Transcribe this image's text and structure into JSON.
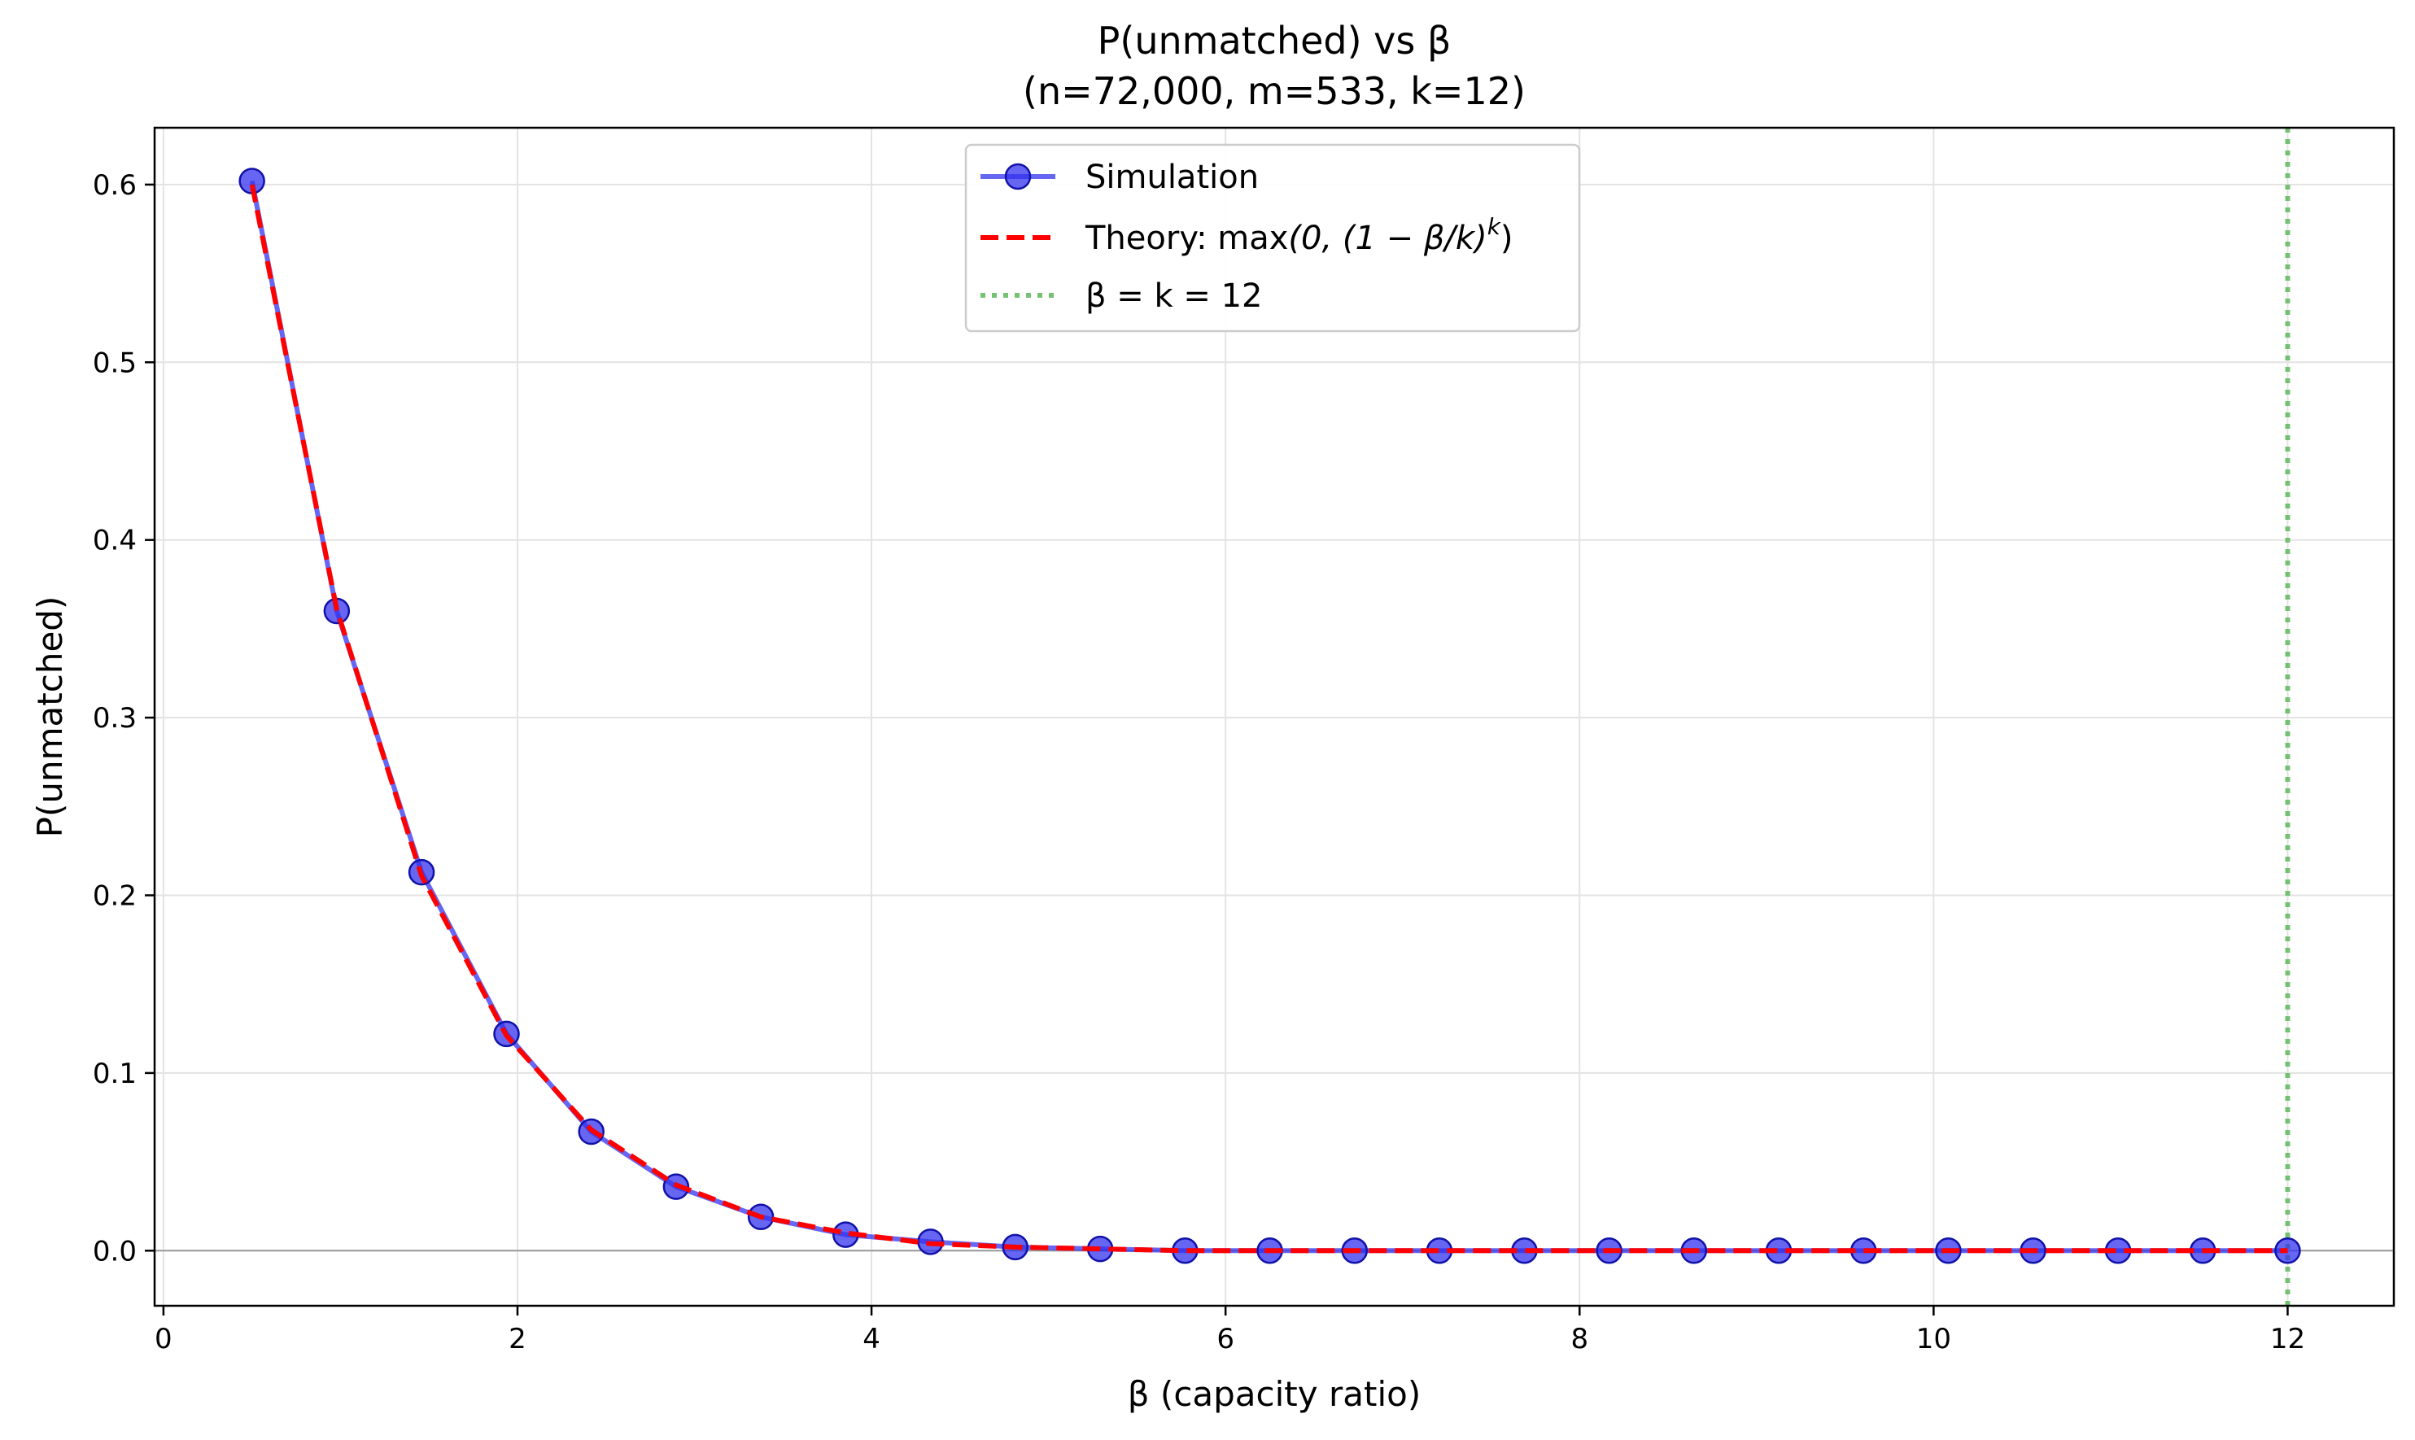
{
  "chart_data": {
    "type": "line",
    "title": "P(unmatched) vs β",
    "subtitle": "(n=72,000, m=533, k=12)",
    "xlabel": "β (capacity ratio)",
    "ylabel": "P(unmatched)",
    "xlim": [
      -0.05,
      12.6
    ],
    "ylim": [
      -0.031,
      0.632
    ],
    "xticks": [
      0,
      2,
      4,
      6,
      8,
      10,
      12
    ],
    "xtick_labels": [
      "0",
      "2",
      "4",
      "6",
      "8",
      "10",
      "12"
    ],
    "yticks": [
      0.0,
      0.1,
      0.2,
      0.3,
      0.4,
      0.5,
      0.6
    ],
    "ytick_labels": [
      "0.0",
      "0.1",
      "0.2",
      "0.3",
      "0.4",
      "0.5",
      "0.6"
    ],
    "grid": true,
    "legend_position": "top-center",
    "series": [
      {
        "name": "Simulation",
        "style": "solid line with circle markers",
        "color": "#3333ee",
        "x": [
          0.5,
          0.979,
          1.458,
          1.938,
          2.417,
          2.896,
          3.375,
          3.854,
          4.333,
          4.812,
          5.292,
          5.771,
          6.25,
          6.729,
          7.208,
          7.688,
          8.167,
          8.646,
          9.125,
          9.604,
          10.083,
          10.562,
          11.042,
          11.521,
          12.0
        ],
        "y": [
          0.602,
          0.36,
          0.213,
          0.122,
          0.067,
          0.036,
          0.019,
          0.009,
          0.005,
          0.002,
          0.001,
          0.0,
          0.0,
          0.0,
          0.0,
          0.0,
          0.0,
          0.0,
          0.0,
          0.0,
          0.0,
          0.0,
          0.0,
          0.0,
          0.0
        ]
      },
      {
        "name": "Theory: max(0, (1 − β/k)^k)",
        "style": "dashed",
        "color": "#ff0000",
        "x": [
          0.5,
          0.979,
          1.458,
          1.938,
          2.417,
          2.896,
          3.375,
          3.854,
          4.333,
          4.812,
          5.292,
          5.771,
          6.25,
          6.729,
          7.208,
          7.688,
          8.167,
          8.646,
          9.125,
          9.604,
          10.083,
          10.562,
          11.042,
          11.521,
          12.0
        ],
        "y": [
          0.6,
          0.361,
          0.211,
          0.121,
          0.068,
          0.037,
          0.019,
          0.01,
          0.004,
          0.002,
          0.001,
          0.0,
          0.0,
          0.0,
          0.0,
          0.0,
          0.0,
          0.0,
          0.0,
          0.0,
          0.0,
          0.0,
          0.0,
          0.0,
          0.0
        ]
      }
    ],
    "reference_lines": [
      {
        "name": "β = k = 12",
        "orientation": "vertical",
        "x": 12,
        "style": "dotted",
        "color": "#66bb66"
      },
      {
        "name": "",
        "orientation": "horizontal",
        "y": 0,
        "style": "solid",
        "color": "#999999"
      }
    ],
    "legend": {
      "simulation": "Simulation",
      "theory_prefix": "Theory: max",
      "theory_formula": "(0, (1 − β/k)",
      "theory_exp": "k",
      "theory_suffix": ")",
      "reference": "β = k = 12"
    }
  }
}
